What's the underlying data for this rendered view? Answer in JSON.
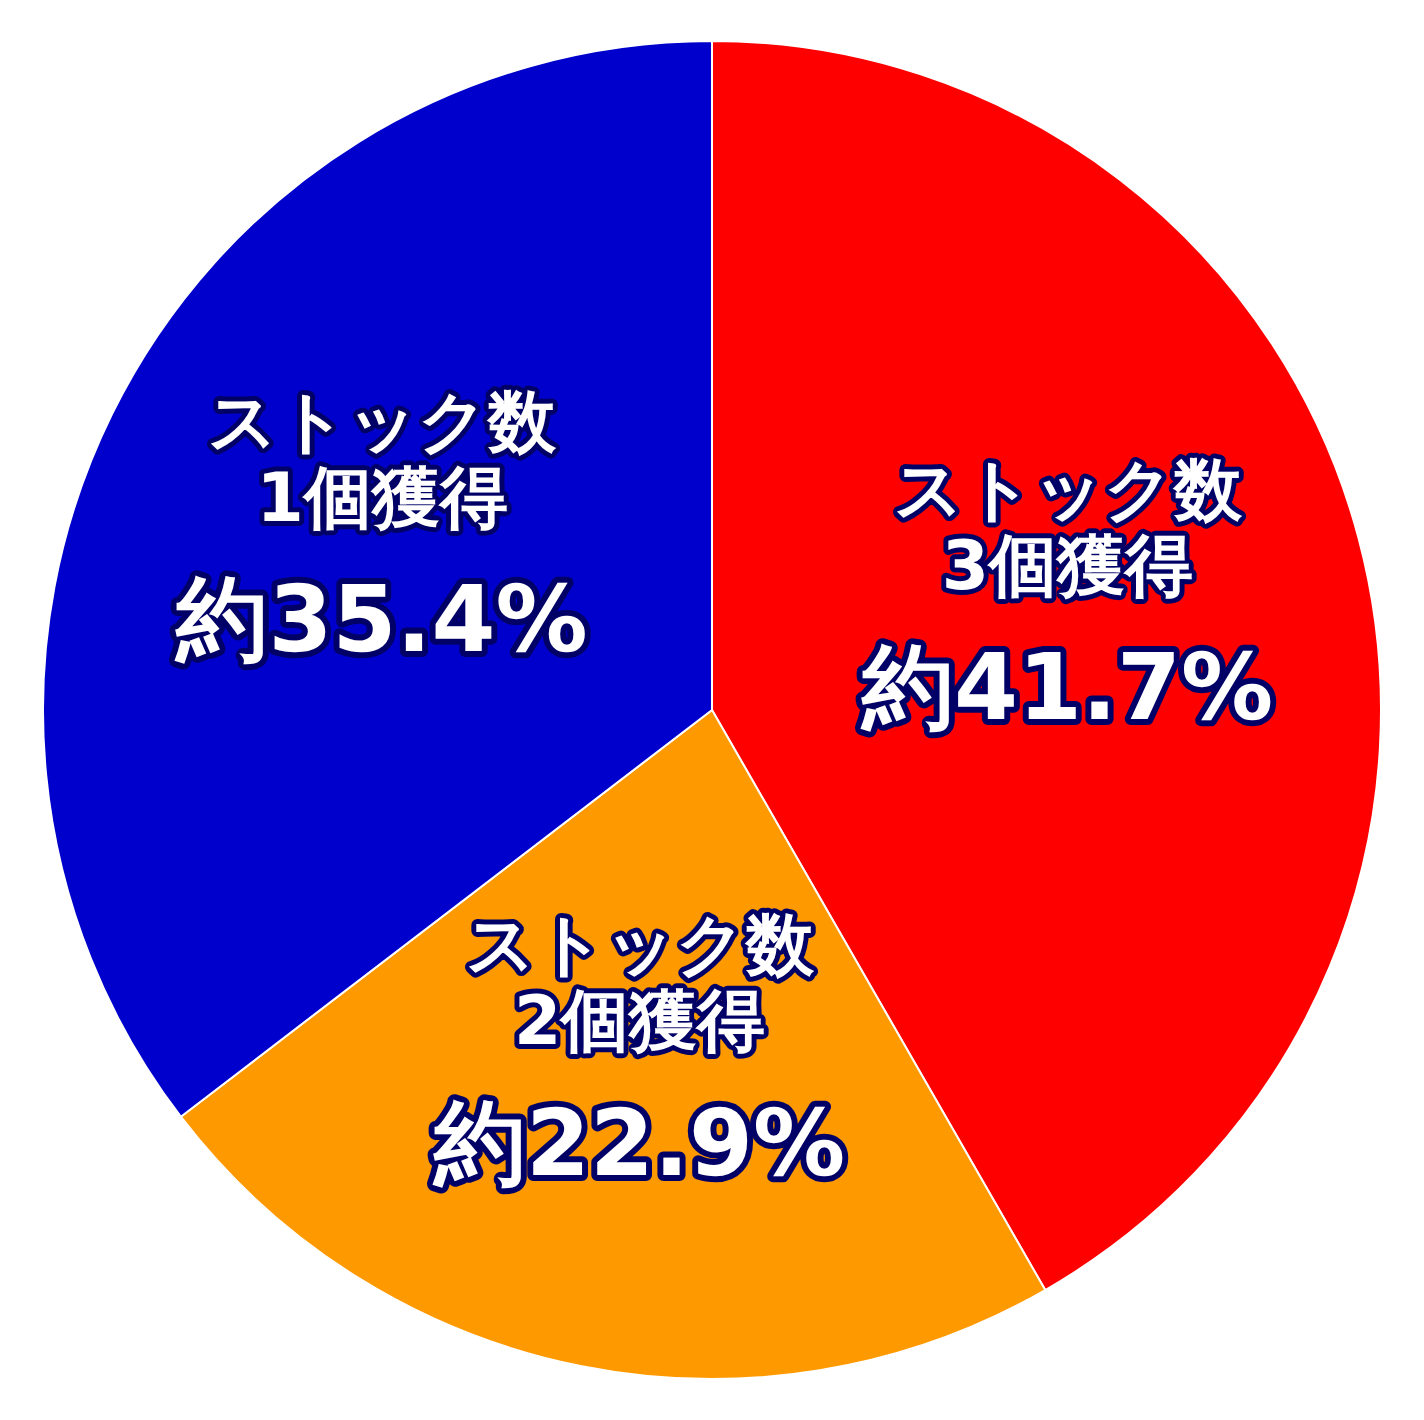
{
  "chart_data": {
    "type": "pie",
    "categories": [
      "ストック数 3個獲得",
      "ストック数 2個獲得",
      "ストック数 1個獲得"
    ],
    "values": [
      41.7,
      22.9,
      35.4
    ],
    "colors": [
      "#ff0000",
      "#ff9900",
      "#0000cc"
    ],
    "value_labels": [
      "約41.7%",
      "約22.9%",
      "約35.4%"
    ]
  }
}
